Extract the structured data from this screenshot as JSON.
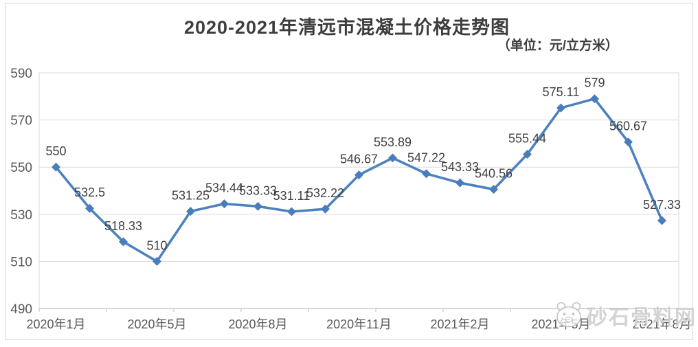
{
  "page": {
    "title": "2020-2021年清远市混凝土价格走势图",
    "unit_label": "（单位：元/立方米）",
    "watermark_text": "砂石骨料网"
  },
  "chart_data": {
    "type": "line",
    "title": "2020-2021年清远市混凝土价格走势图",
    "unit": "元/立方米",
    "series": [
      {
        "name": "清远市混凝土价格",
        "values": [
          550,
          532.5,
          518.33,
          510,
          531.25,
          534.44,
          533.33,
          531.11,
          532.22,
          546.67,
          553.89,
          547.22,
          543.33,
          540.56,
          555.44,
          575.11,
          579,
          560.67,
          527.33
        ]
      }
    ],
    "point_labels": [
      "550",
      "532.5",
      "518.33",
      "510",
      "531.25",
      "534.44",
      "533.33",
      "531.11",
      "532.22",
      "546.67",
      "553.89",
      "547.22",
      "543.33",
      "540.56",
      "555.44",
      "575.11",
      "579",
      "560.67",
      "527.33"
    ],
    "x_tick_labels": [
      "2020年1月",
      "2020年5月",
      "2020年8月",
      "2020年11月",
      "2021年2月",
      "2021年5月",
      "2021年8月"
    ],
    "x_tick_label_indices": [
      0,
      3,
      6,
      9,
      12,
      15,
      18
    ],
    "y_ticks": [
      490,
      510,
      530,
      550,
      570,
      590
    ],
    "ylim": [
      490,
      590
    ],
    "grid": "horizontal",
    "legend": "none",
    "marker": "diamond",
    "line_color": "#4e82bf",
    "marker_color": "#4a7dbc",
    "data_label_color": "#404040",
    "axis_text_color": "#595959",
    "grid_color": "#d9d9d9",
    "axis_line_color": "#bfbfbf"
  }
}
